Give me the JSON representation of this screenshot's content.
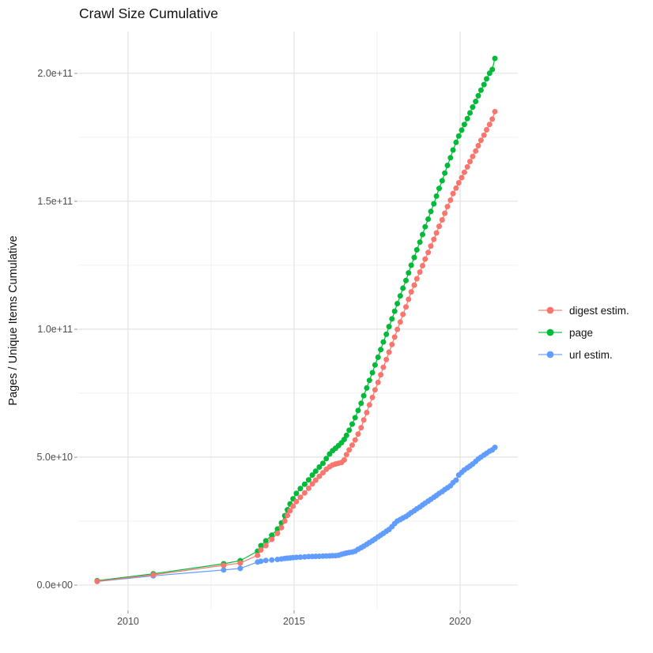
{
  "chart_data": {
    "type": "line",
    "title": "Crawl Size Cumulative",
    "ylabel": "Pages / Unique Items Cumulative",
    "xlabel": "",
    "legend_position": "right",
    "grid": true,
    "value_unit": "values listed in billions (multiply by 1e9)",
    "xlim": [
      2008.5,
      2021.74
    ],
    "ylim_e9": [
      -9.9,
      216.3
    ],
    "x_ticks_major": [
      2010,
      2015,
      2020
    ],
    "x_tick_labels": [
      "2010",
      "2015",
      "2020"
    ],
    "x_ticks_minor": [
      2012.5,
      2017.5
    ],
    "y_ticks_major_e9": [
      0,
      50,
      100,
      150,
      200
    ],
    "y_tick_labels": [
      "0.0e+00",
      "5.0e+10",
      "1.0e+11",
      "1.5e+11",
      "2.0e+11"
    ],
    "y_ticks_minor_e9": [
      25,
      75,
      125,
      175
    ],
    "colors": {
      "major_grid": "#e3e3e3",
      "minor_grid": "#f0f0f0",
      "tick": "#c9c9c9",
      "tick_text": "#4d4d4d",
      "text": "#111111"
    },
    "series": [
      {
        "name": "digest estim.",
        "color": "#F8766D",
        "points": [
          [
            2009.07,
            1.5
          ],
          [
            2010.76,
            4.0
          ],
          [
            2012.88,
            7.7
          ],
          [
            2013.38,
            8.6
          ],
          [
            2013.9,
            11.6
          ],
          [
            2014.0,
            13.7
          ],
          [
            2014.15,
            15.4
          ],
          [
            2014.33,
            17.8
          ],
          [
            2014.5,
            20.2
          ],
          [
            2014.62,
            22.4
          ],
          [
            2014.72,
            25.0
          ],
          [
            2014.8,
            27.2
          ],
          [
            2014.88,
            29.0
          ],
          [
            2014.97,
            30.8
          ],
          [
            2015.07,
            32.6
          ],
          [
            2015.19,
            34.3
          ],
          [
            2015.32,
            36.0
          ],
          [
            2015.44,
            37.8
          ],
          [
            2015.55,
            39.5
          ],
          [
            2015.65,
            41.0
          ],
          [
            2015.76,
            42.5
          ],
          [
            2015.87,
            43.9
          ],
          [
            2015.97,
            45.2
          ],
          [
            2016.07,
            46.2
          ],
          [
            2016.16,
            46.9
          ],
          [
            2016.25,
            47.3
          ],
          [
            2016.34,
            47.6
          ],
          [
            2016.43,
            47.9
          ],
          [
            2016.51,
            48.9
          ],
          [
            2016.58,
            51.0
          ],
          [
            2016.66,
            52.8
          ],
          [
            2016.75,
            54.7
          ],
          [
            2016.84,
            56.7
          ],
          [
            2016.93,
            59.0
          ],
          [
            2017.02,
            61.5
          ],
          [
            2017.1,
            64.5
          ],
          [
            2017.19,
            67.4
          ],
          [
            2017.27,
            70.4
          ],
          [
            2017.36,
            73.3
          ],
          [
            2017.44,
            76.3
          ],
          [
            2017.53,
            79.2
          ],
          [
            2017.61,
            82.2
          ],
          [
            2017.69,
            85.1
          ],
          [
            2017.78,
            88.1
          ],
          [
            2017.86,
            91.0
          ],
          [
            2017.95,
            94.0
          ],
          [
            2018.03,
            96.9
          ],
          [
            2018.11,
            99.9
          ],
          [
            2018.2,
            102.8
          ],
          [
            2018.28,
            105.8
          ],
          [
            2018.37,
            108.7
          ],
          [
            2018.45,
            111.7
          ],
          [
            2018.53,
            114.6
          ],
          [
            2018.62,
            117.2
          ],
          [
            2018.7,
            119.7
          ],
          [
            2018.79,
            122.3
          ],
          [
            2018.87,
            124.8
          ],
          [
            2018.95,
            127.4
          ],
          [
            2019.04,
            130.0
          ],
          [
            2019.12,
            132.5
          ],
          [
            2019.21,
            135.1
          ],
          [
            2019.29,
            137.6
          ],
          [
            2019.37,
            140.2
          ],
          [
            2019.46,
            142.7
          ],
          [
            2019.54,
            145.3
          ],
          [
            2019.62,
            147.9
          ],
          [
            2019.71,
            150.4
          ],
          [
            2019.79,
            153.0
          ],
          [
            2019.88,
            155.1
          ],
          [
            2019.96,
            157.2
          ],
          [
            2020.05,
            159.2
          ],
          [
            2020.13,
            161.3
          ],
          [
            2020.22,
            163.4
          ],
          [
            2020.3,
            165.5
          ],
          [
            2020.38,
            167.5
          ],
          [
            2020.47,
            169.6
          ],
          [
            2020.55,
            171.7
          ],
          [
            2020.63,
            173.8
          ],
          [
            2020.72,
            175.8
          ],
          [
            2020.8,
            177.9
          ],
          [
            2020.89,
            180.0
          ],
          [
            2020.97,
            182.1
          ],
          [
            2021.05,
            185.0
          ]
        ]
      },
      {
        "name": "page",
        "color": "#00BA38",
        "points": [
          [
            2009.07,
            1.7
          ],
          [
            2010.76,
            4.4
          ],
          [
            2012.88,
            8.3
          ],
          [
            2013.38,
            9.5
          ],
          [
            2013.9,
            13.2
          ],
          [
            2014.0,
            15.4
          ],
          [
            2014.15,
            17.3
          ],
          [
            2014.33,
            19.5
          ],
          [
            2014.5,
            21.9
          ],
          [
            2014.62,
            24.3
          ],
          [
            2014.72,
            27.1
          ],
          [
            2014.8,
            29.4
          ],
          [
            2014.88,
            31.7
          ],
          [
            2014.97,
            33.7
          ],
          [
            2015.07,
            35.8
          ],
          [
            2015.19,
            37.7
          ],
          [
            2015.32,
            39.4
          ],
          [
            2015.44,
            41.1
          ],
          [
            2015.55,
            43.0
          ],
          [
            2015.65,
            44.5
          ],
          [
            2015.76,
            46.1
          ],
          [
            2015.87,
            47.6
          ],
          [
            2015.97,
            49.4
          ],
          [
            2016.07,
            51.2
          ],
          [
            2016.16,
            52.5
          ],
          [
            2016.25,
            53.5
          ],
          [
            2016.34,
            54.5
          ],
          [
            2016.43,
            55.6
          ],
          [
            2016.51,
            56.9
          ],
          [
            2016.58,
            58.5
          ],
          [
            2016.66,
            60.5
          ],
          [
            2016.75,
            62.9
          ],
          [
            2016.84,
            65.4
          ],
          [
            2016.93,
            68.2
          ],
          [
            2017.02,
            71.0
          ],
          [
            2017.1,
            74.0
          ],
          [
            2017.19,
            77.0
          ],
          [
            2017.27,
            80.0
          ],
          [
            2017.36,
            83.0
          ],
          [
            2017.44,
            86.0
          ],
          [
            2017.53,
            89.0
          ],
          [
            2017.61,
            92.0
          ],
          [
            2017.69,
            95.0
          ],
          [
            2017.78,
            98.0
          ],
          [
            2017.86,
            101.0
          ],
          [
            2017.95,
            104.0
          ],
          [
            2018.03,
            107.0
          ],
          [
            2018.11,
            110.0
          ],
          [
            2018.2,
            113.0
          ],
          [
            2018.28,
            116.0
          ],
          [
            2018.37,
            119.0
          ],
          [
            2018.45,
            122.0
          ],
          [
            2018.53,
            125.0
          ],
          [
            2018.62,
            128.0
          ],
          [
            2018.7,
            131.0
          ],
          [
            2018.79,
            134.0
          ],
          [
            2018.87,
            137.0
          ],
          [
            2018.95,
            140.0
          ],
          [
            2019.04,
            143.0
          ],
          [
            2019.12,
            146.0
          ],
          [
            2019.21,
            149.0
          ],
          [
            2019.29,
            152.0
          ],
          [
            2019.37,
            155.0
          ],
          [
            2019.46,
            158.0
          ],
          [
            2019.54,
            161.0
          ],
          [
            2019.62,
            164.0
          ],
          [
            2019.71,
            167.0
          ],
          [
            2019.79,
            170.0
          ],
          [
            2019.88,
            173.0
          ],
          [
            2019.96,
            175.5
          ],
          [
            2020.05,
            177.8
          ],
          [
            2020.13,
            180.0
          ],
          [
            2020.22,
            182.3
          ],
          [
            2020.3,
            184.5
          ],
          [
            2020.38,
            186.8
          ],
          [
            2020.47,
            189.0
          ],
          [
            2020.55,
            191.2
          ],
          [
            2020.63,
            193.4
          ],
          [
            2020.72,
            195.6
          ],
          [
            2020.8,
            197.8
          ],
          [
            2020.89,
            200.0
          ],
          [
            2020.97,
            201.5
          ],
          [
            2021.05,
            205.8
          ]
        ]
      },
      {
        "name": "url estim.",
        "color": "#619CFF",
        "points": [
          [
            2009.07,
            1.4
          ],
          [
            2010.76,
            3.6
          ],
          [
            2012.88,
            5.9
          ],
          [
            2013.38,
            6.5
          ],
          [
            2013.9,
            9.0
          ],
          [
            2014.0,
            9.3
          ],
          [
            2014.15,
            9.6
          ],
          [
            2014.33,
            9.8
          ],
          [
            2014.5,
            10.0
          ],
          [
            2014.62,
            10.2
          ],
          [
            2014.72,
            10.4
          ],
          [
            2014.8,
            10.5
          ],
          [
            2014.88,
            10.6
          ],
          [
            2014.97,
            10.7
          ],
          [
            2015.07,
            10.8
          ],
          [
            2015.19,
            10.9
          ],
          [
            2015.32,
            11.0
          ],
          [
            2015.44,
            11.1
          ],
          [
            2015.55,
            11.15
          ],
          [
            2015.65,
            11.2
          ],
          [
            2015.76,
            11.25
          ],
          [
            2015.87,
            11.3
          ],
          [
            2015.97,
            11.35
          ],
          [
            2016.07,
            11.4
          ],
          [
            2016.16,
            11.45
          ],
          [
            2016.25,
            11.5
          ],
          [
            2016.34,
            11.6
          ],
          [
            2016.43,
            12.0
          ],
          [
            2016.51,
            12.3
          ],
          [
            2016.58,
            12.5
          ],
          [
            2016.66,
            12.7
          ],
          [
            2016.75,
            12.9
          ],
          [
            2016.84,
            13.2
          ],
          [
            2016.93,
            14.0
          ],
          [
            2017.02,
            14.6
          ],
          [
            2017.1,
            15.2
          ],
          [
            2017.19,
            15.9
          ],
          [
            2017.27,
            16.6
          ],
          [
            2017.36,
            17.3
          ],
          [
            2017.44,
            18.0
          ],
          [
            2017.53,
            18.8
          ],
          [
            2017.61,
            19.5
          ],
          [
            2017.69,
            20.2
          ],
          [
            2017.78,
            21.0
          ],
          [
            2017.86,
            21.7
          ],
          [
            2017.95,
            22.8
          ],
          [
            2018.03,
            24.0
          ],
          [
            2018.11,
            25.0
          ],
          [
            2018.2,
            25.6
          ],
          [
            2018.28,
            26.2
          ],
          [
            2018.37,
            26.8
          ],
          [
            2018.45,
            27.5
          ],
          [
            2018.53,
            28.3
          ],
          [
            2018.62,
            29.0
          ],
          [
            2018.7,
            29.8
          ],
          [
            2018.79,
            30.5
          ],
          [
            2018.87,
            31.3
          ],
          [
            2018.95,
            32.0
          ],
          [
            2019.04,
            32.8
          ],
          [
            2019.12,
            33.5
          ],
          [
            2019.21,
            34.3
          ],
          [
            2019.29,
            35.0
          ],
          [
            2019.37,
            35.8
          ],
          [
            2019.46,
            36.5
          ],
          [
            2019.54,
            37.3
          ],
          [
            2019.62,
            38.0
          ],
          [
            2019.71,
            38.8
          ],
          [
            2019.79,
            40.0
          ],
          [
            2019.88,
            41.0
          ],
          [
            2019.96,
            43.0
          ],
          [
            2020.05,
            44.0
          ],
          [
            2020.13,
            45.0
          ],
          [
            2020.22,
            45.8
          ],
          [
            2020.3,
            46.5
          ],
          [
            2020.38,
            47.3
          ],
          [
            2020.47,
            48.3
          ],
          [
            2020.55,
            49.3
          ],
          [
            2020.63,
            50.0
          ],
          [
            2020.72,
            50.8
          ],
          [
            2020.8,
            51.5
          ],
          [
            2020.89,
            52.3
          ],
          [
            2020.97,
            52.8
          ],
          [
            2021.05,
            53.8
          ]
        ]
      }
    ]
  }
}
